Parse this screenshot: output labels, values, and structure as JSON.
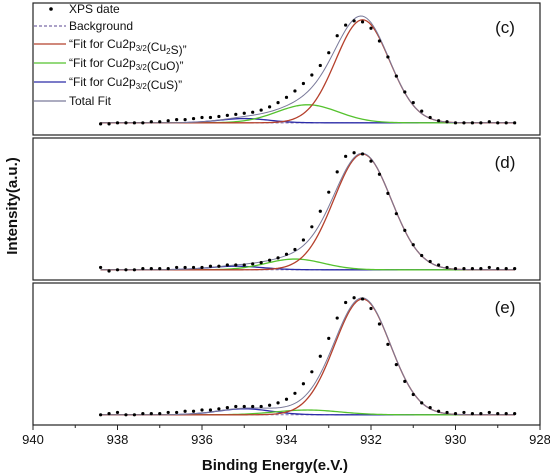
{
  "chart_data": {
    "type": "scatter",
    "xlabel": "Binding Energy(e.V.)",
    "ylabel": "Intensity(a.u.)",
    "xlim": [
      940,
      928
    ],
    "x_ticks": [
      940,
      938,
      936,
      934,
      932,
      930,
      928
    ],
    "x_reversed": true,
    "legend_position": "top-left",
    "legend": [
      {
        "key": "data",
        "text": "XPS date",
        "style": "dots"
      },
      {
        "key": "background",
        "text": "Background",
        "style": "dashed"
      },
      {
        "key": "cu2s",
        "pre": "“Fit for Cu2p",
        "sub": "3/2",
        "mid": "(Cu",
        "sub2": "2",
        "post": "S)”"
      },
      {
        "key": "cuo",
        "pre": "“Fit for Cu2p",
        "sub": "3/2",
        "mid": "(CuO)”"
      },
      {
        "key": "cus",
        "pre": "“Fit for Cu2p",
        "sub": "3/2",
        "mid": "(CuS)”"
      },
      {
        "key": "total",
        "text": "Total Fit",
        "style": "solid"
      }
    ],
    "colors": {
      "data": "#000000",
      "background": "#7a6aa8",
      "cu2s": "#b5402c",
      "cuo": "#55c22e",
      "cus": "#2c2ca8",
      "total": "#7a7a9a"
    },
    "panels": [
      {
        "label": "(c)",
        "ylim": [
          0,
          1.12
        ],
        "background": 0.03,
        "peaks": {
          "cu2s": {
            "center": 932.2,
            "amplitude": 0.97,
            "fwhm": 1.5
          },
          "cuo": {
            "center": 933.5,
            "amplitude": 0.17,
            "fwhm": 1.7
          },
          "cus": {
            "center": 935.0,
            "amplitude": 0.04,
            "fwhm": 1.4
          }
        },
        "x": [
          938.4,
          938.2,
          938.0,
          937.8,
          937.6,
          937.4,
          937.2,
          937.0,
          936.8,
          936.6,
          936.4,
          936.2,
          936.0,
          935.8,
          935.6,
          935.4,
          935.2,
          935.0,
          934.8,
          934.6,
          934.4,
          934.2,
          934.0,
          933.8,
          933.6,
          933.4,
          933.2,
          933.0,
          932.8,
          932.6,
          932.4,
          932.2,
          932.0,
          931.8,
          931.6,
          931.4,
          931.2,
          931.0,
          930.8,
          930.6,
          930.4,
          930.2,
          930.0,
          929.8,
          929.6,
          929.4,
          929.2,
          929.0,
          928.8,
          928.6
        ],
        "y": [
          0.02,
          0.02,
          0.03,
          0.03,
          0.03,
          0.03,
          0.04,
          0.04,
          0.05,
          0.06,
          0.06,
          0.07,
          0.08,
          0.08,
          0.09,
          0.1,
          0.11,
          0.12,
          0.13,
          0.15,
          0.18,
          0.22,
          0.27,
          0.33,
          0.4,
          0.48,
          0.57,
          0.69,
          0.85,
          0.95,
          0.99,
          0.98,
          0.92,
          0.8,
          0.65,
          0.47,
          0.32,
          0.22,
          0.14,
          0.08,
          0.05,
          0.04,
          0.03,
          0.03,
          0.03,
          0.03,
          0.04,
          0.03,
          0.03,
          0.03
        ]
      },
      {
        "label": "(d)",
        "ylim": [
          0,
          1.08
        ],
        "background": 0.01,
        "peaks": {
          "cu2s": {
            "center": 932.2,
            "amplitude": 0.97,
            "fwhm": 1.6
          },
          "cuo": {
            "center": 933.8,
            "amplitude": 0.09,
            "fwhm": 1.6
          },
          "cus": {
            "center": 935.2,
            "amplitude": 0.03,
            "fwhm": 1.5
          }
        },
        "x": [
          938.4,
          938.2,
          938.0,
          937.8,
          937.6,
          937.4,
          937.2,
          937.0,
          936.8,
          936.6,
          936.4,
          936.2,
          936.0,
          935.8,
          935.6,
          935.4,
          935.2,
          935.0,
          934.8,
          934.6,
          934.4,
          934.2,
          934.0,
          933.8,
          933.6,
          933.4,
          933.2,
          933.0,
          932.8,
          932.6,
          932.4,
          932.2,
          932.0,
          931.8,
          931.6,
          931.4,
          931.2,
          931.0,
          930.8,
          930.6,
          930.4,
          930.2,
          930.0,
          929.8,
          929.6,
          929.4,
          929.2,
          929.0,
          928.8,
          928.6
        ],
        "y": [
          0.03,
          0.0,
          0.01,
          0.01,
          0.01,
          0.02,
          0.02,
          0.02,
          0.02,
          0.03,
          0.03,
          0.03,
          0.03,
          0.04,
          0.04,
          0.05,
          0.05,
          0.05,
          0.06,
          0.07,
          0.09,
          0.11,
          0.14,
          0.18,
          0.26,
          0.37,
          0.5,
          0.66,
          0.83,
          0.96,
          0.99,
          0.98,
          0.92,
          0.81,
          0.65,
          0.48,
          0.34,
          0.22,
          0.13,
          0.08,
          0.05,
          0.03,
          0.02,
          0.02,
          0.02,
          0.02,
          0.03,
          0.02,
          0.02,
          0.02
        ]
      },
      {
        "label": "(e)",
        "ylim": [
          0,
          1.08
        ],
        "background": 0.01,
        "peaks": {
          "cu2s": {
            "center": 932.2,
            "amplitude": 0.97,
            "fwhm": 1.55
          },
          "cuo": {
            "center": 933.5,
            "amplitude": 0.04,
            "fwhm": 1.8
          },
          "cus": {
            "center": 935.0,
            "amplitude": 0.05,
            "fwhm": 1.5
          }
        },
        "x": [
          938.4,
          938.2,
          938.0,
          937.8,
          937.6,
          937.4,
          937.2,
          937.0,
          936.8,
          936.6,
          936.4,
          936.2,
          936.0,
          935.8,
          935.6,
          935.4,
          935.2,
          935.0,
          934.8,
          934.6,
          934.4,
          934.2,
          934.0,
          933.8,
          933.6,
          933.4,
          933.2,
          933.0,
          932.8,
          932.6,
          932.4,
          932.2,
          932.0,
          931.8,
          931.6,
          931.4,
          931.2,
          931.0,
          930.8,
          930.6,
          930.4,
          930.2,
          930.0,
          929.8,
          929.6,
          929.4,
          929.2,
          929.0,
          928.8,
          928.6
        ],
        "y": [
          0.01,
          0.02,
          0.03,
          0.01,
          0.01,
          0.02,
          0.02,
          0.02,
          0.03,
          0.03,
          0.04,
          0.04,
          0.05,
          0.05,
          0.06,
          0.07,
          0.08,
          0.08,
          0.08,
          0.08,
          0.09,
          0.11,
          0.14,
          0.19,
          0.27,
          0.37,
          0.5,
          0.65,
          0.82,
          0.95,
          0.99,
          0.98,
          0.9,
          0.77,
          0.6,
          0.43,
          0.29,
          0.18,
          0.11,
          0.07,
          0.04,
          0.03,
          0.02,
          0.03,
          0.02,
          0.02,
          0.03,
          0.02,
          0.02,
          0.02
        ]
      }
    ]
  }
}
